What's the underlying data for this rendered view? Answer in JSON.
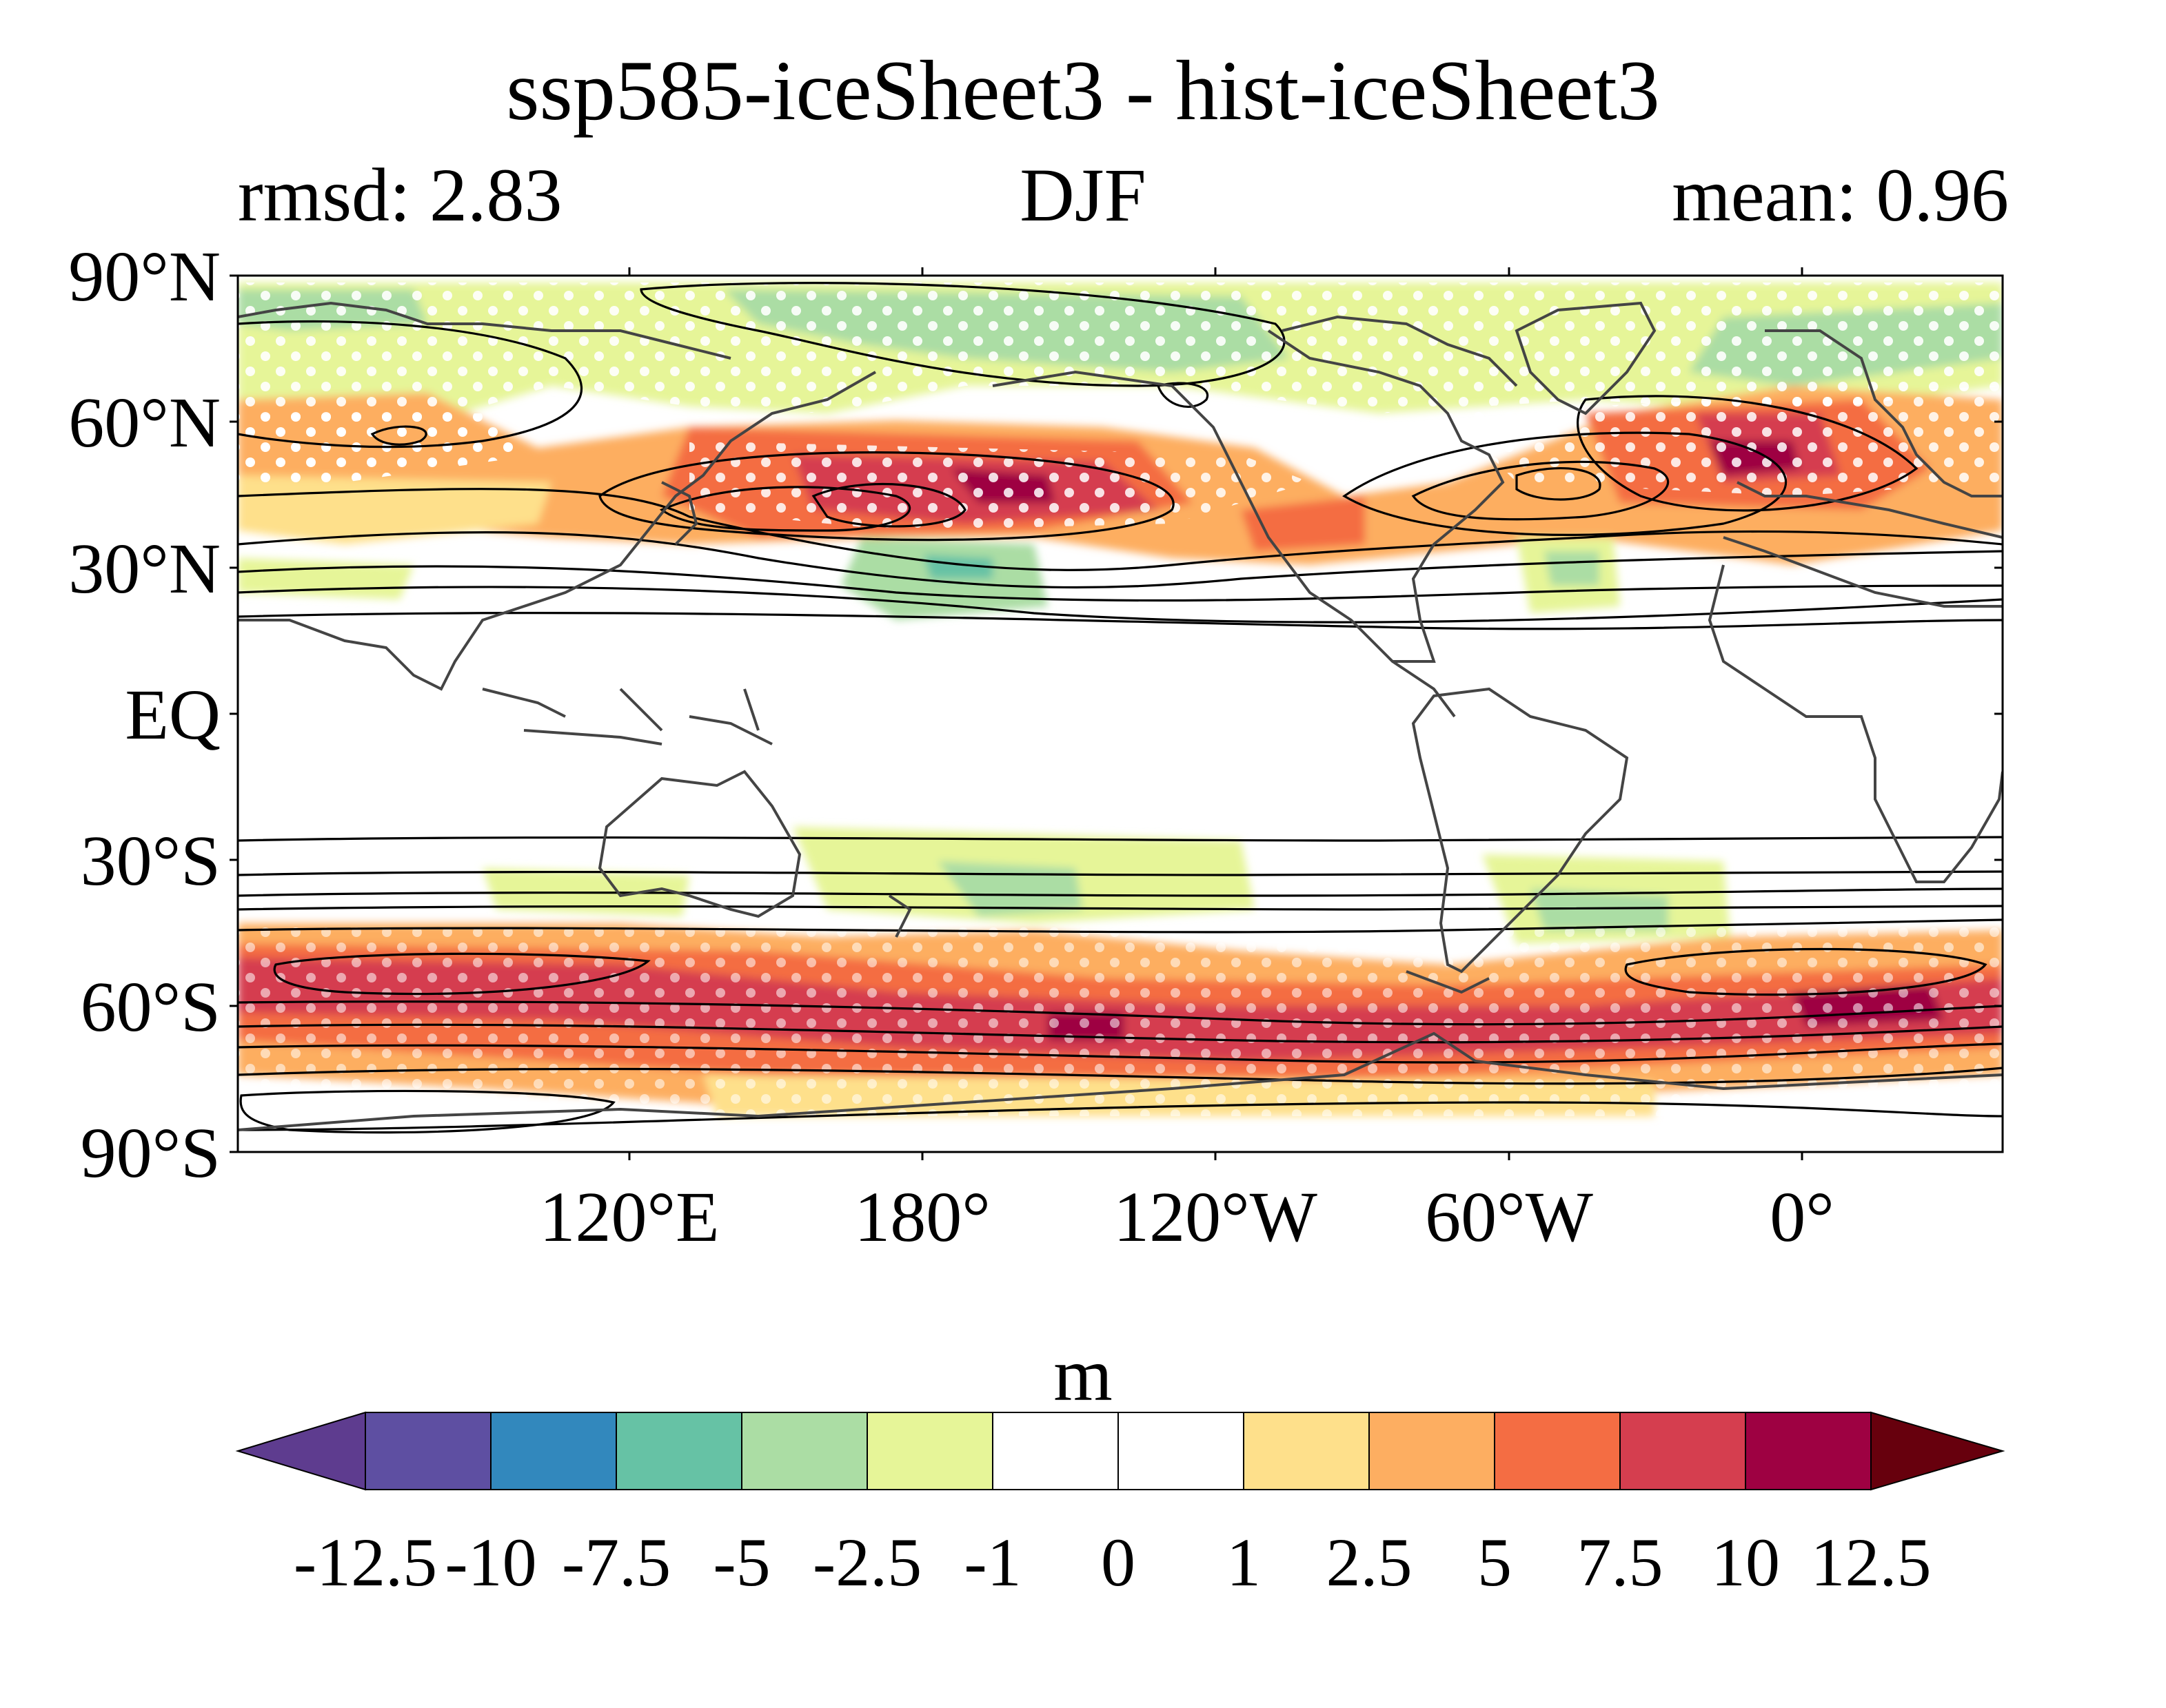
{
  "title": "ssp585-iceSheet3 - hist-iceSheet3",
  "subtitle_left": "rmsd: 2.83",
  "subtitle_center": "DJF",
  "subtitle_right": "mean: 0.96",
  "map": {
    "projection": "equirectangular, centered ~150°W",
    "lat_labels": [
      "90°N",
      "60°N",
      "30°N",
      "EQ",
      "30°S",
      "60°S",
      "90°S"
    ],
    "lon_labels": [
      "120°E",
      "180°",
      "120°W",
      "60°W",
      "0°"
    ],
    "features": [
      "coastlines",
      "black contour lines (climatology)",
      "white stippling (significance)",
      "filled anomaly contours"
    ]
  },
  "colorbar": {
    "unit": "m",
    "ticks": [
      "-12.5",
      "-10",
      "-7.5",
      "-5",
      "-2.5",
      "-1",
      "0",
      "1",
      "2.5",
      "5",
      "7.5",
      "10",
      "12.5"
    ],
    "under_color": "#5e3c8f",
    "over_color": "#67000d",
    "colors": [
      "#5e4fa2",
      "#3288bd",
      "#66c2a5",
      "#abdda4",
      "#e6f598",
      "#ffffff",
      "#ffffff",
      "#fee08b",
      "#fdae61",
      "#f46d43",
      "#d53e4f",
      "#9e0142"
    ]
  },
  "colors": {
    "coastline": "#444444",
    "contour": "#000000",
    "stipple": "#ffffff"
  }
}
